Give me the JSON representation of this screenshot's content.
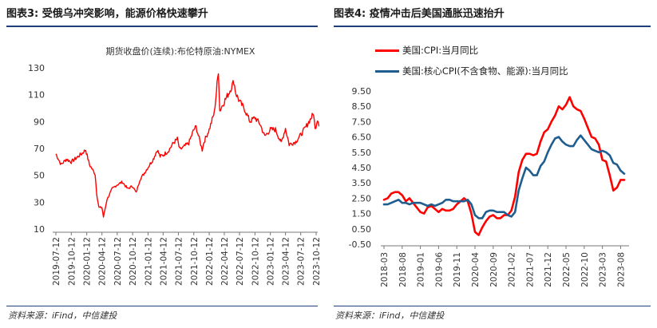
{
  "left": {
    "figure_title": "图表3:  受俄乌冲突影响，能源价格快速攀升",
    "source": "资料来源：iFind，中信建投"
  },
  "right": {
    "figure_title": "图表4:  疫情冲击后美国通胀迅速抬升",
    "source": "资料来源：iFind，中信建投"
  },
  "chart_data": [
    {
      "type": "line",
      "title": "期货收盘价(连续):布伦特原油:NYMEX",
      "xlabel": "",
      "ylabel": "",
      "ylim": [
        10,
        130
      ],
      "yticks": [
        10,
        30,
        50,
        70,
        90,
        110,
        130
      ],
      "xticks": [
        "2019-07-12",
        "2019-10-12",
        "2020-01-12",
        "2020-04-12",
        "2020-07-12",
        "2020-10-12",
        "2021-01-12",
        "2021-04-12",
        "2021-07-12",
        "2021-10-12",
        "2022-01-12",
        "2022-04-12",
        "2022-07-12",
        "2022-10-12",
        "2023-01-12",
        "2023-04-12",
        "2023-07-12",
        "2023-10-12"
      ],
      "grid": false,
      "color": "#ff0000",
      "series": [
        {
          "x": [
            "2019-07-12",
            "2019-08-12",
            "2019-09-12",
            "2019-10-12",
            "2019-11-12",
            "2019-12-12",
            "2020-01-06",
            "2020-01-28",
            "2020-02-12",
            "2020-03-02",
            "2020-03-12",
            "2020-03-25",
            "2020-04-12",
            "2020-04-21",
            "2020-05-12",
            "2020-06-12",
            "2020-07-12",
            "2020-08-12",
            "2020-09-12",
            "2020-10-12",
            "2020-11-02",
            "2020-11-25",
            "2020-12-12",
            "2021-01-12",
            "2021-02-12",
            "2021-03-08",
            "2021-03-25",
            "2021-04-12",
            "2021-05-12",
            "2021-06-12",
            "2021-07-06",
            "2021-07-20",
            "2021-08-12",
            "2021-09-12",
            "2021-10-12",
            "2021-10-26",
            "2021-12-01",
            "2021-12-12",
            "2022-01-12",
            "2022-02-12",
            "2022-03-08",
            "2022-03-16",
            "2022-04-12",
            "2022-05-12",
            "2022-06-08",
            "2022-06-20",
            "2022-07-12",
            "2022-08-12",
            "2022-09-12",
            "2022-10-12",
            "2022-11-12",
            "2022-12-09",
            "2023-01-12",
            "2023-02-12",
            "2023-03-17",
            "2023-04-12",
            "2023-05-04",
            "2023-06-12",
            "2023-07-12",
            "2023-08-12",
            "2023-09-27",
            "2023-10-06",
            "2023-10-20",
            "2023-11-05"
          ],
          "values": [
            66,
            58,
            62,
            60,
            63,
            66,
            69,
            58,
            55,
            51,
            36,
            26,
            26,
            19,
            32,
            40,
            43,
            45,
            40,
            42,
            37,
            47,
            50,
            56,
            62,
            69,
            64,
            65,
            68,
            74,
            77,
            69,
            71,
            74,
            84,
            86,
            69,
            75,
            84,
            97,
            128,
            98,
            105,
            112,
            120,
            111,
            105,
            99,
            90,
            93,
            88,
            79,
            84,
            84,
            74,
            85,
            73,
            75,
            80,
            86,
            96,
            84,
            92,
            86
          ]
        }
      ]
    },
    {
      "type": "line",
      "title": "",
      "xlabel": "",
      "ylabel": "",
      "ylim": [
        -0.5,
        9.5
      ],
      "yticks": [
        "9.50",
        "8.50",
        "7.50",
        "6.50",
        "5.50",
        "4.50",
        "3.50",
        "2.50",
        "1.50",
        "0.50",
        "-0.50"
      ],
      "xticks": [
        "2018-03",
        "2018-08",
        "2019-01",
        "2019-06",
        "2019-11",
        "2020-04",
        "2020-09",
        "2021-02",
        "2021-07",
        "2021-12",
        "2022-05",
        "2022-10",
        "2023-03",
        "2023-08"
      ],
      "grid": false,
      "legend": "top",
      "series": [
        {
          "name": "美国:CPI:当月同比",
          "color": "#ff0000",
          "x": [
            "2018-03",
            "2018-04",
            "2018-05",
            "2018-06",
            "2018-07",
            "2018-08",
            "2018-09",
            "2018-10",
            "2018-11",
            "2018-12",
            "2019-01",
            "2019-02",
            "2019-03",
            "2019-04",
            "2019-05",
            "2019-06",
            "2019-07",
            "2019-08",
            "2019-09",
            "2019-10",
            "2019-11",
            "2019-12",
            "2020-01",
            "2020-02",
            "2020-03",
            "2020-04",
            "2020-05",
            "2020-06",
            "2020-07",
            "2020-08",
            "2020-09",
            "2020-10",
            "2020-11",
            "2020-12",
            "2021-01",
            "2021-02",
            "2021-03",
            "2021-04",
            "2021-05",
            "2021-06",
            "2021-07",
            "2021-08",
            "2021-09",
            "2021-10",
            "2021-11",
            "2021-12",
            "2022-01",
            "2022-02",
            "2022-03",
            "2022-04",
            "2022-05",
            "2022-06",
            "2022-07",
            "2022-08",
            "2022-09",
            "2022-10",
            "2022-11",
            "2022-12",
            "2023-01",
            "2023-02",
            "2023-03",
            "2023-04",
            "2023-05",
            "2023-06",
            "2023-07",
            "2023-08",
            "2023-09"
          ],
          "values": [
            2.4,
            2.5,
            2.8,
            2.9,
            2.9,
            2.7,
            2.3,
            2.5,
            2.2,
            1.9,
            1.6,
            1.5,
            1.9,
            2.0,
            1.8,
            1.6,
            1.8,
            1.7,
            1.7,
            1.8,
            2.1,
            2.3,
            2.5,
            2.3,
            1.5,
            0.3,
            0.1,
            0.6,
            1.0,
            1.3,
            1.4,
            1.2,
            1.2,
            1.4,
            1.4,
            1.7,
            2.6,
            4.2,
            5.0,
            5.4,
            5.4,
            5.3,
            5.4,
            6.2,
            6.8,
            7.0,
            7.5,
            7.9,
            8.5,
            8.3,
            8.6,
            9.1,
            8.5,
            8.3,
            8.2,
            7.7,
            7.1,
            6.5,
            6.4,
            6.0,
            5.0,
            4.9,
            4.0,
            3.0,
            3.2,
            3.7,
            3.7
          ]
        },
        {
          "name": "美国:核心CPI(不含食物、能源):当月同比",
          "color": "#1f5d8f",
          "x": [
            "2018-03",
            "2018-04",
            "2018-05",
            "2018-06",
            "2018-07",
            "2018-08",
            "2018-09",
            "2018-10",
            "2018-11",
            "2018-12",
            "2019-01",
            "2019-02",
            "2019-03",
            "2019-04",
            "2019-05",
            "2019-06",
            "2019-07",
            "2019-08",
            "2019-09",
            "2019-10",
            "2019-11",
            "2019-12",
            "2020-01",
            "2020-02",
            "2020-03",
            "2020-04",
            "2020-05",
            "2020-06",
            "2020-07",
            "2020-08",
            "2020-09",
            "2020-10",
            "2020-11",
            "2020-12",
            "2021-01",
            "2021-02",
            "2021-03",
            "2021-04",
            "2021-05",
            "2021-06",
            "2021-07",
            "2021-08",
            "2021-09",
            "2021-10",
            "2021-11",
            "2021-12",
            "2022-01",
            "2022-02",
            "2022-03",
            "2022-04",
            "2022-05",
            "2022-06",
            "2022-07",
            "2022-08",
            "2022-09",
            "2022-10",
            "2022-11",
            "2022-12",
            "2023-01",
            "2023-02",
            "2023-03",
            "2023-04",
            "2023-05",
            "2023-06",
            "2023-07",
            "2023-08",
            "2023-09"
          ],
          "values": [
            2.1,
            2.1,
            2.2,
            2.3,
            2.4,
            2.2,
            2.2,
            2.1,
            2.2,
            2.2,
            2.2,
            2.1,
            2.0,
            2.1,
            2.0,
            2.1,
            2.2,
            2.4,
            2.4,
            2.3,
            2.3,
            2.3,
            2.3,
            2.4,
            2.1,
            1.4,
            1.2,
            1.2,
            1.6,
            1.7,
            1.7,
            1.6,
            1.6,
            1.6,
            1.4,
            1.3,
            1.6,
            3.0,
            3.8,
            4.5,
            4.3,
            4.0,
            4.0,
            4.6,
            4.9,
            5.5,
            6.0,
            6.4,
            6.5,
            6.2,
            6.0,
            5.9,
            5.9,
            6.3,
            6.6,
            6.3,
            6.0,
            5.7,
            5.6,
            5.5,
            5.6,
            5.5,
            5.3,
            4.8,
            4.7,
            4.3,
            4.1
          ]
        }
      ]
    }
  ]
}
